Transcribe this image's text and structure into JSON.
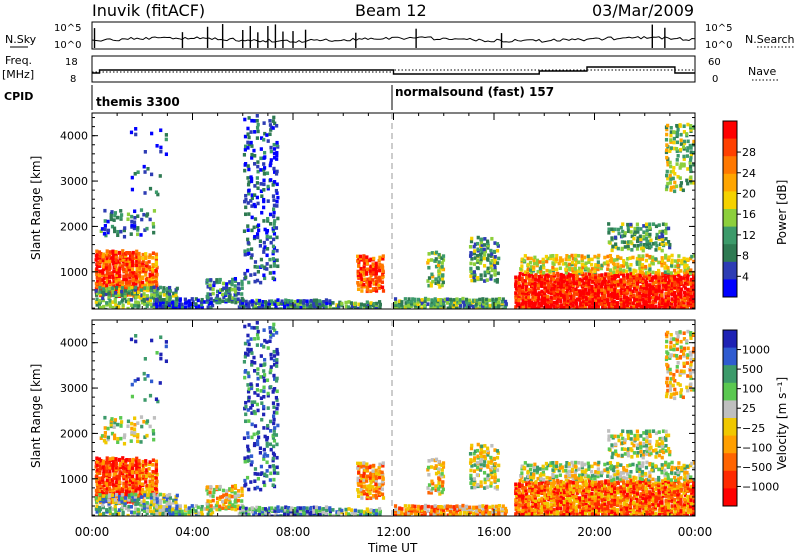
{
  "header": {
    "station": "Inuvik (fitACF)",
    "beam": "Beam 12",
    "date": "03/Mar/2009"
  },
  "top_panels": {
    "nsky_label": "N.Sky",
    "nsky_ticks": [
      "10^5",
      "10^0"
    ],
    "nsearch_label": "N.Search",
    "nsearch_ticks": [
      "10^5",
      "10^0"
    ],
    "freq_label_1": "Freq.",
    "freq_label_2": "[MHz]",
    "freq_ticks": [
      "18",
      "8"
    ],
    "nave_label": "Nave",
    "nave_ticks": [
      "60",
      "0"
    ],
    "cpid_label": "CPID",
    "cpid_1": "themis 3300",
    "cpid_2": "normalsound (fast) 157"
  },
  "colors": {
    "power": [
      "#0000ff",
      "#2d3cb4",
      "#2e7a52",
      "#3c9a6a",
      "#8ccf3c",
      "#f5d200",
      "#ffa500",
      "#ff7800",
      "#ff4000",
      "#ff0000"
    ],
    "velocity": [
      "#1e22b4",
      "#2f5bd0",
      "#3c9a6a",
      "#5ac850",
      "#bfbfbf",
      "#f0c800",
      "#ff9f00",
      "#ff6400",
      "#ff2a00",
      "#ff0000"
    ]
  },
  "chart_data": [
    {
      "type": "heatmap",
      "name": "power",
      "title": "",
      "xlabel": "",
      "ylabel": "Slant Range [km]",
      "y_ticks": [
        1000,
        2000,
        3000,
        4000
      ],
      "ylim": [
        180,
        4500
      ],
      "x_ticks": [
        "00:00",
        "04:00",
        "08:00",
        "12:00",
        "16:00",
        "20:00",
        "00:00"
      ],
      "colorbar_label": "Power [dB]",
      "colorbar_ticks": [
        "4",
        "8",
        "12",
        "16",
        "20",
        "24",
        "28"
      ]
    },
    {
      "type": "heatmap",
      "name": "velocity",
      "title": "",
      "xlabel": "Time UT",
      "ylabel": "Slant Range [km]",
      "y_ticks": [
        1000,
        2000,
        3000,
        4000
      ],
      "ylim": [
        180,
        4500
      ],
      "x_ticks": [
        "00:00",
        "04:00",
        "08:00",
        "12:00",
        "16:00",
        "20:00",
        "00:00"
      ],
      "colorbar_label": "Velocity [m s⁻¹]",
      "colorbar_ticks": [
        "1000",
        "500",
        "100",
        "25",
        "−25",
        "−100",
        "−500",
        "−1000"
      ]
    }
  ]
}
